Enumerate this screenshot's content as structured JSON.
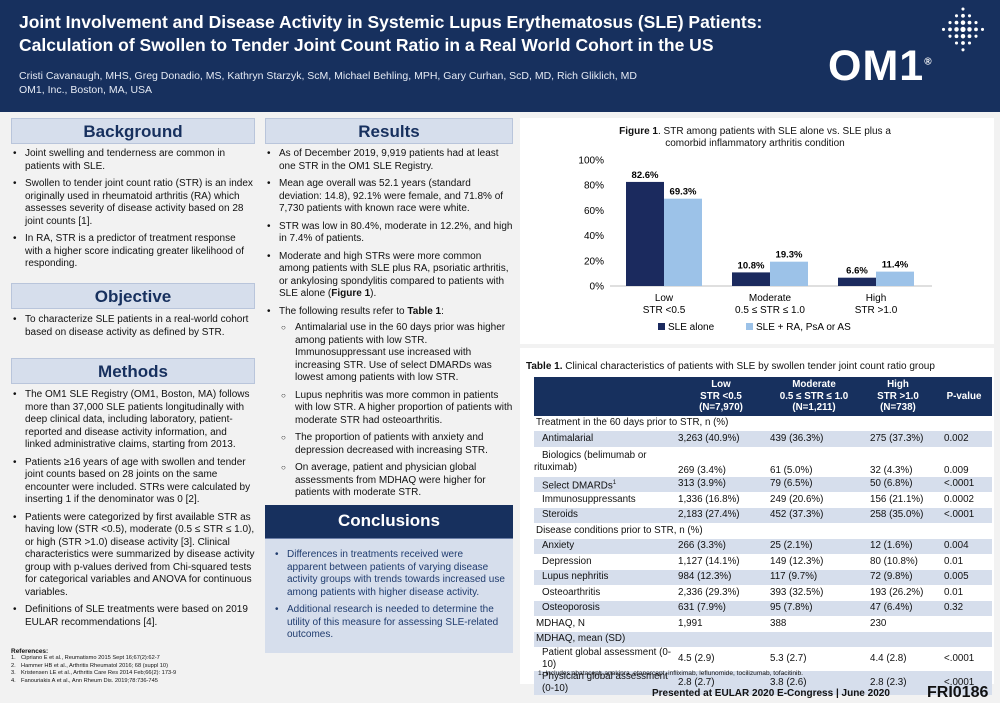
{
  "header": {
    "title_line1": "Joint Involvement and Disease Activity in Systemic Lupus Erythematosus (SLE) Patients:",
    "title_line2": "Calculation of Swollen to Tender Joint Count Ratio in a Real World Cohort in the US",
    "authors": "Cristi Cavanaugh, MHS, Greg Donadio, MS, Kathryn Starzyk, ScM, Michael Behling, MPH, Gary Curhan, ScD, MD, Rich Gliklich, MD",
    "affiliation": "OM1, Inc., Boston, MA, USA",
    "logo_text": "OM1",
    "logo_mark": "®"
  },
  "background": {
    "heading": "Background",
    "bullets": [
      "Joint swelling and tenderness are common in patients with SLE.",
      "Swollen to tender joint count ratio (STR) is an index originally used in rheumatoid arthritis (RA) which assesses severity of disease activity based on 28 joint counts [1].",
      "In RA, STR is a predictor of treatment response with a higher score indicating greater likelihood of responding."
    ]
  },
  "objective": {
    "heading": "Objective",
    "bullets": [
      "To characterize SLE patients in a real-world cohort based on disease activity as defined by STR."
    ]
  },
  "methods": {
    "heading": "Methods",
    "bullets": [
      "The OM1 SLE Registry (OM1, Boston, MA) follows more than 37,000 SLE patients longitudinally with deep clinical data, including laboratory, patient-reported and disease activity information, and linked administrative claims, starting from 2013.",
      "Patients ≥16 years of age with swollen and tender joint counts based on 28 joints on the same encounter were included. STRs were calculated by inserting 1 if the denominator was 0 [2].",
      "Patients were categorized by first available STR as having low (STR <0.5), moderate (0.5 ≤ STR ≤ 1.0), or high (STR >1.0) disease activity [3]. Clinical characteristics were summarized by disease activity group with p-values derived from Chi-squared tests for categorical variables and ANOVA for continuous variables.",
      "Definitions of SLE treatments were based on 2019 EULAR recommendations [4]."
    ]
  },
  "references": {
    "heading": "References:",
    "items": [
      {
        "num": "1.",
        "text": "Cipriano E et al., Reumatismo 2015 Sept 16;67(2):62-7"
      },
      {
        "num": "2.",
        "text": "Hammer HB et al., Arthritis Rheumatol 2016; 68 (suppl 10)"
      },
      {
        "num": "3.",
        "text": "Kristensen LE et al., Arthritis Care Res 2014 Feb;66(2): 173-9"
      },
      {
        "num": "4.",
        "text": "Fanouriakis A et al., Ann Rheum Dis. 2019;78:736-745"
      }
    ]
  },
  "results": {
    "heading": "Results",
    "bullets": [
      "As of December 2019, 9,919 patients had at least one STR in the OM1 SLE Registry.",
      "Mean age overall was 52.1 years (standard deviation: 14.8), 92.1% were female, and 71.8% of 7,730 patients with known race were white.",
      "STR was low in 80.4%, moderate in 12.2%, and high in 7.4% of patients."
    ],
    "bullet4_pre": "Moderate and high STRs were more common among patients with SLE plus RA, psoriatic arthritis, or ankylosing spondylitis compared to patients with SLE alone (",
    "bullet4_ref": "Figure 1",
    "bullet4_post": ").",
    "bullet5_pre": "The following results refer to ",
    "bullet5_ref": "Table 1",
    "bullet5_post": ":",
    "sub_bullets": [
      "Antimalarial use in the 60 days prior was higher among patients with low STR. Immunosuppressant use increased with increasing STR. Use of select DMARDs was lowest among patients with low STR.",
      "Lupus nephritis was more common in patients with low STR. A higher proportion of patients with moderate STR had osteoarthritis.",
      "The proportion of patients with anxiety and depression decreased with increasing STR.",
      "On average, patient and physician global assessments from MDHAQ were higher for patients with moderate STR."
    ]
  },
  "conclusions": {
    "heading": "Conclusions",
    "bullets": [
      "Differences in treatments received were apparent between patients of varying disease activity groups with trends towards increased use among patients with higher disease activity.",
      "Additional research is needed to determine the utility of this measure for assessing SLE-related outcomes."
    ]
  },
  "chart_data": {
    "type": "bar",
    "title_bold": "Figure 1",
    "title_rest": ". STR among patients with SLE alone vs. SLE plus a comorbid inflammatory arthritis condition",
    "categories": [
      {
        "line1": "Low",
        "line2": "STR <0.5"
      },
      {
        "line1": "Moderate",
        "line2": "0.5 ≤ STR ≤ 1.0"
      },
      {
        "line1": "High",
        "line2": "STR >1.0"
      }
    ],
    "series": [
      {
        "name": "SLE alone",
        "values": [
          82.6,
          10.8,
          6.6
        ],
        "labels": [
          "82.6%",
          "10.8%",
          "6.6%"
        ],
        "color": "#1b2a5e"
      },
      {
        "name": "SLE + RA, PsA or AS",
        "values": [
          69.3,
          19.3,
          11.4
        ],
        "labels": [
          "69.3%",
          "19.3%",
          "11.4%"
        ],
        "color": "#9cc2e8"
      }
    ],
    "yticks": [
      "0%",
      "20%",
      "40%",
      "60%",
      "80%",
      "100%"
    ],
    "ylim": [
      0,
      100
    ],
    "legend_position": "bottom",
    "grid": false
  },
  "table": {
    "title_bold": "Table 1.",
    "title_rest": " Clinical characteristics of patients with SLE by swollen tender joint count ratio group",
    "headers": [
      {
        "line1": "",
        "line2": "",
        "line3": ""
      },
      {
        "line1": "Low",
        "line2": "STR <0.5",
        "line3": "(N=7,970)"
      },
      {
        "line1": "Moderate",
        "line2": "0.5 ≤ STR ≤ 1.0",
        "line3": "(N=1,211)"
      },
      {
        "line1": "High",
        "line2": "STR >1.0",
        "line3": "(N=738)"
      },
      {
        "line1": "P-value",
        "line2": "",
        "line3": ""
      }
    ],
    "rows": [
      {
        "type": "cat",
        "label": "Treatment in the 60 days prior to STR, n (%)"
      },
      {
        "type": "row",
        "label": "Antimalarial",
        "low": "3,263 (40.9%)",
        "mod": "439 (36.3%)",
        "high": "275 (37.3%)",
        "p": "0.002"
      },
      {
        "type": "row2",
        "label1": "Biologics (belimumab or",
        "label2": "rituximab)",
        "low": "269 (3.4%)",
        "mod": "61 (5.0%)",
        "high": "32 (4.3%)",
        "p": "0.009"
      },
      {
        "type": "row",
        "label": "Select DMARDs",
        "sup": "1",
        "low": "313 (3.9%)",
        "mod": "79 (6.5%)",
        "high": "50 (6.8%)",
        "p": "<.0001"
      },
      {
        "type": "row",
        "label": "Immunosuppressants",
        "low": "1,336 (16.8%)",
        "mod": "249 (20.6%)",
        "high": "156 (21.1%)",
        "p": "0.0002"
      },
      {
        "type": "row",
        "label": "Steroids",
        "low": "2,183 (27.4%)",
        "mod": "452 (37.3%)",
        "high": "258 (35.0%)",
        "p": "<.0001"
      },
      {
        "type": "cat",
        "label": "Disease conditions prior to STR, n (%)"
      },
      {
        "type": "row",
        "label": "Anxiety",
        "low": "266 (3.3%)",
        "mod": "25 (2.1%)",
        "high": "12 (1.6%)",
        "p": "0.004"
      },
      {
        "type": "row",
        "label": "Depression",
        "low": "1,127 (14.1%)",
        "mod": "149 (12.3%)",
        "high": "80 (10.8%)",
        "p": "0.01"
      },
      {
        "type": "row",
        "label": "Lupus nephritis",
        "low": "984 (12.3%)",
        "mod": "117 (9.7%)",
        "high": "72 (9.8%)",
        "p": "0.005"
      },
      {
        "type": "row",
        "label": "Osteoarthritis",
        "low": "2,336 (29.3%)",
        "mod": "393 (32.5%)",
        "high": "193 (26.2%)",
        "p": "0.01"
      },
      {
        "type": "row",
        "label": "Osteoporosis",
        "low": "631 (7.9%)",
        "mod": "95 (7.8%)",
        "high": "47 (6.4%)",
        "p": "0.32"
      },
      {
        "type": "catv",
        "label": "MDHAQ, N",
        "low": "1,991",
        "mod": "388",
        "high": "230",
        "p": ""
      },
      {
        "type": "cat",
        "label": "MDHAQ, mean (SD)"
      },
      {
        "type": "row",
        "label": "Patient global assessment (0-10)",
        "low": "4.5 (2.9)",
        "mod": "5.3 (2.7)",
        "high": "4.4 (2.8)",
        "p": "<.0001"
      },
      {
        "type": "row",
        "label": "Physician global assessment (0-10)",
        "low": "2.8 (2.7)",
        "mod": "3.8 (2.6)",
        "high": "2.8 (2.3)",
        "p": "<.0001"
      }
    ],
    "footnote": "1. Includes abatacept, anakinra, etanercept, infliximab, leflunomide, tocilizumab, tofacitinib."
  },
  "footer": {
    "presented": "Presented at EULAR 2020 E-Congress | June 2020",
    "poster_id": "FRI0186"
  },
  "colors": {
    "navy": "#17305e",
    "section_fill": "#d6deec",
    "bar_dark": "#1b2a5e",
    "bar_light": "#9cc2e8"
  }
}
